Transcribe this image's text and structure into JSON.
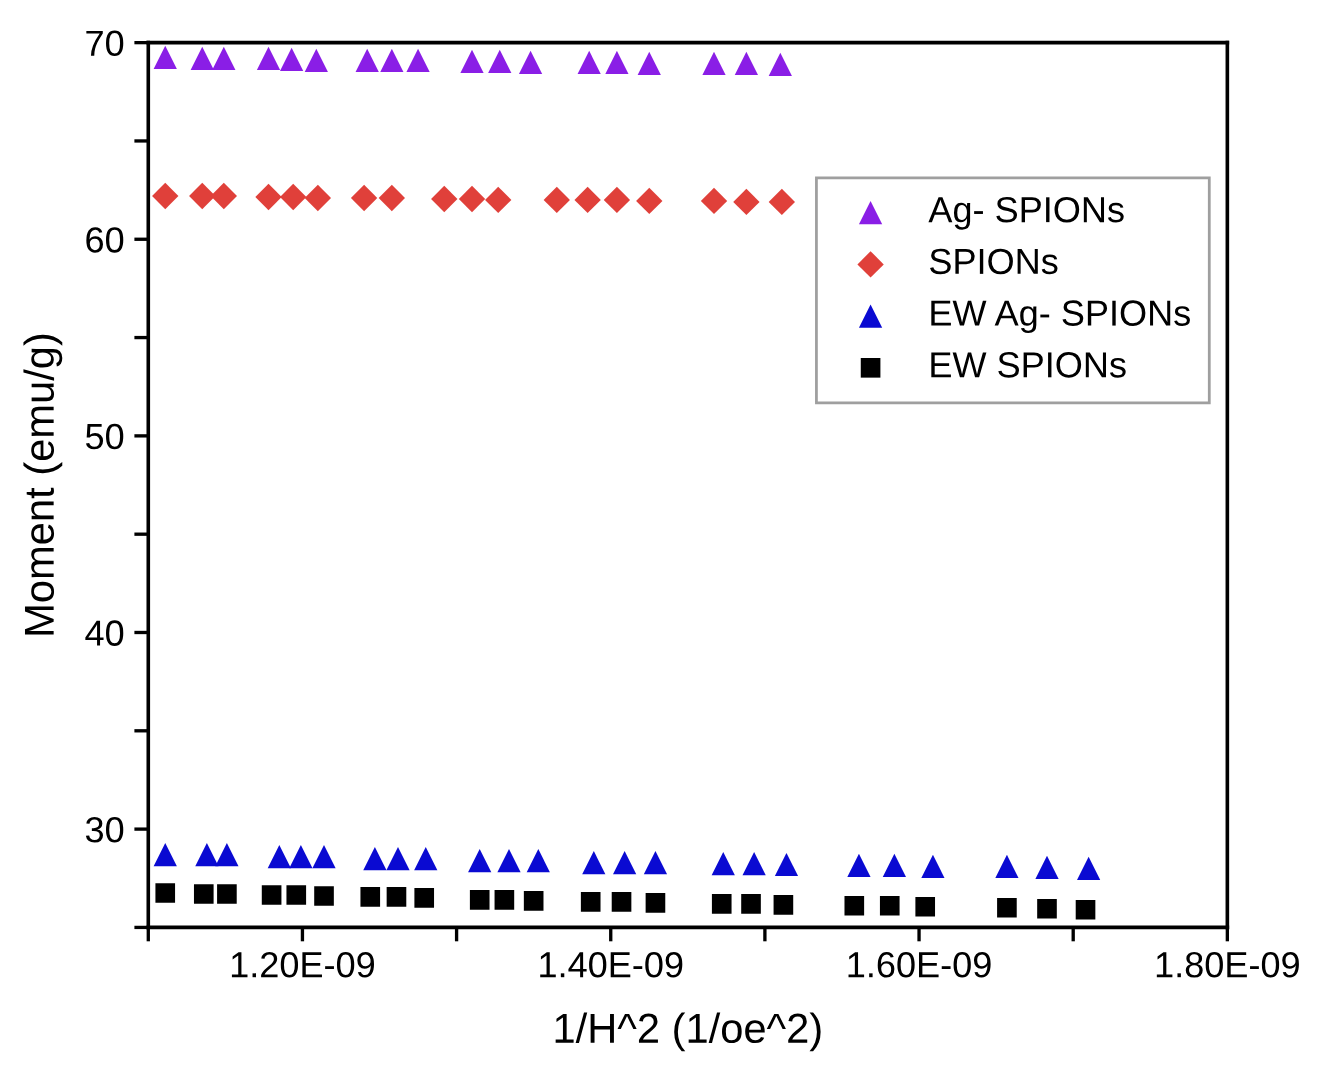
{
  "chart_data": {
    "type": "scatter",
    "xlabel": "1/H^2 (1/oe^2)",
    "ylabel": "Moment (emu/g)",
    "xlim": [
      1.1e-09,
      1.8e-09
    ],
    "ylim": [
      25,
      70
    ],
    "xticks": [
      {
        "value": 1.1e-09,
        "label": null
      },
      {
        "value": 1.2e-09,
        "label": "1.20E-09"
      },
      {
        "value": 1.3e-09,
        "label": null
      },
      {
        "value": 1.4e-09,
        "label": "1.40E-09"
      },
      {
        "value": 1.5e-09,
        "label": null
      },
      {
        "value": 1.6e-09,
        "label": "1.60E-09"
      },
      {
        "value": 1.7e-09,
        "label": null
      },
      {
        "value": 1.8e-09,
        "label": "1.80E-09"
      }
    ],
    "yticks": [
      {
        "value": 25,
        "label": null
      },
      30,
      {
        "value": 35,
        "label": null
      },
      40,
      {
        "value": 45,
        "label": null
      },
      50,
      {
        "value": 55,
        "label": null
      },
      60,
      {
        "value": 65,
        "label": null
      },
      70
    ],
    "grid": false,
    "legend": "right",
    "series": [
      {
        "name": "Ag- SPIONs",
        "color": "#8a1ee6",
        "marker": "triangle",
        "x": [
          1.111e-09,
          1.135e-09,
          1.149e-09,
          1.178e-09,
          1.193e-09,
          1.209e-09,
          1.242e-09,
          1.258e-09,
          1.275e-09,
          1.31e-09,
          1.328e-09,
          1.348e-09,
          1.386e-09,
          1.404e-09,
          1.425e-09,
          1.467e-09,
          1.488e-09,
          1.51e-09
        ],
        "values": [
          69.25,
          69.2,
          69.2,
          69.2,
          69.15,
          69.1,
          69.1,
          69.1,
          69.1,
          69.05,
          69.05,
          69.0,
          69.0,
          69.0,
          68.95,
          68.95,
          68.95,
          68.9
        ]
      },
      {
        "name": "SPIONs",
        "color": "#e0403a",
        "marker": "diamond",
        "x": [
          1.111e-09,
          1.135e-09,
          1.149e-09,
          1.178e-09,
          1.194e-09,
          1.21e-09,
          1.24e-09,
          1.258e-09,
          1.292e-09,
          1.31e-09,
          1.327e-09,
          1.365e-09,
          1.385e-09,
          1.404e-09,
          1.425e-09,
          1.467e-09,
          1.488e-09,
          1.511e-09
        ],
        "values": [
          62.2,
          62.2,
          62.2,
          62.15,
          62.15,
          62.1,
          62.1,
          62.1,
          62.05,
          62.05,
          62.0,
          62.0,
          62.0,
          62.0,
          61.95,
          61.95,
          61.9,
          61.9
        ]
      },
      {
        "name": "EW Ag- SPIONs",
        "color": "#0a0ad2",
        "marker": "triangle",
        "x": [
          1.111e-09,
          1.138e-09,
          1.151e-09,
          1.185e-09,
          1.199e-09,
          1.214e-09,
          1.247e-09,
          1.262e-09,
          1.28e-09,
          1.315e-09,
          1.334e-09,
          1.353e-09,
          1.389e-09,
          1.409e-09,
          1.429e-09,
          1.473e-09,
          1.493e-09,
          1.514e-09,
          1.561e-09,
          1.584e-09,
          1.609e-09,
          1.657e-09,
          1.683e-09,
          1.71e-09
        ],
        "values": [
          28.7,
          28.7,
          28.7,
          28.6,
          28.6,
          28.6,
          28.5,
          28.5,
          28.5,
          28.4,
          28.4,
          28.4,
          28.3,
          28.3,
          28.3,
          28.25,
          28.25,
          28.2,
          28.15,
          28.15,
          28.1,
          28.1,
          28.05,
          28.0
        ]
      },
      {
        "name": "EW SPIONs",
        "color": "#000000",
        "marker": "square",
        "x": [
          1.111e-09,
          1.136e-09,
          1.151e-09,
          1.18e-09,
          1.196e-09,
          1.214e-09,
          1.244e-09,
          1.261e-09,
          1.279e-09,
          1.315e-09,
          1.331e-09,
          1.35e-09,
          1.387e-09,
          1.407e-09,
          1.429e-09,
          1.472e-09,
          1.491e-09,
          1.512e-09,
          1.558e-09,
          1.581e-09,
          1.604e-09,
          1.657e-09,
          1.683e-09,
          1.708e-09
        ],
        "values": [
          26.75,
          26.7,
          26.7,
          26.65,
          26.65,
          26.6,
          26.55,
          26.55,
          26.5,
          26.4,
          26.4,
          26.35,
          26.3,
          26.3,
          26.25,
          26.2,
          26.2,
          26.15,
          26.1,
          26.1,
          26.05,
          26.0,
          25.95,
          25.9
        ]
      }
    ]
  }
}
